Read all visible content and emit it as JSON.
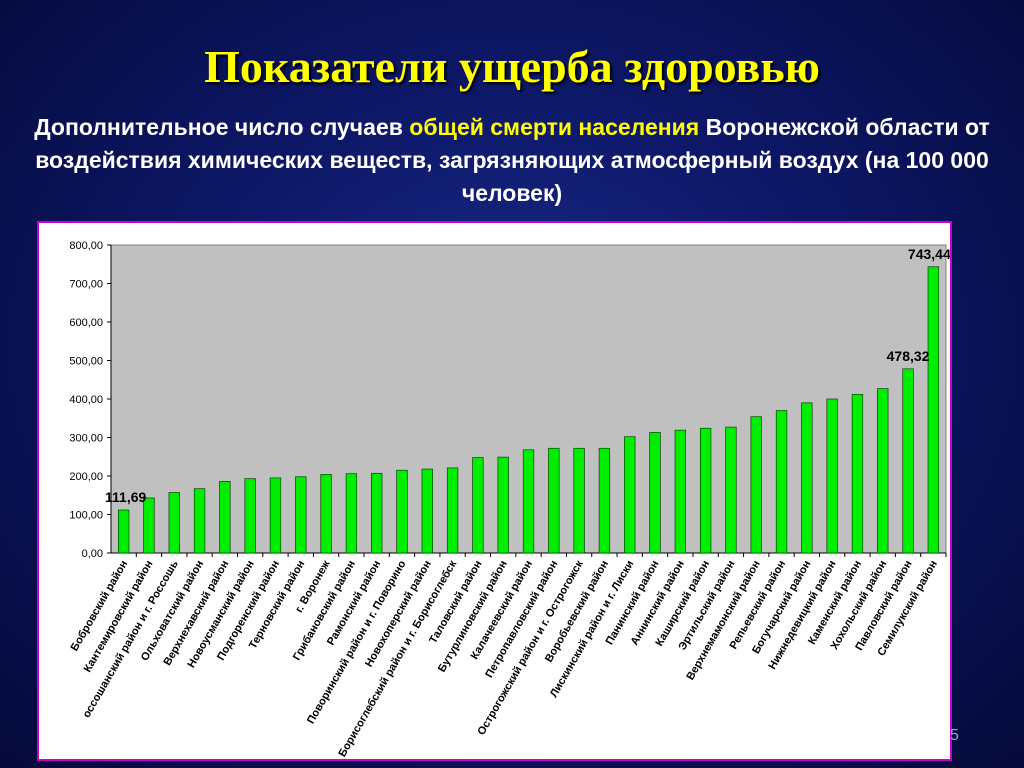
{
  "slide": {
    "title": "Показатели ущерба здоровью",
    "subtitle_part1": "Дополнительное число случаев ",
    "subtitle_highlight": "общей смерти населения",
    "subtitle_part2": " Воронежской области от воздействия химических веществ, загрязняющих атмосферный воздух (на 100 000 человек)",
    "page_number": "5"
  },
  "colors": {
    "bar": "#00ee00",
    "bar_outline": "#004400",
    "plot_bg": "#c0c0c0",
    "title": "#ffff00",
    "frame": "#c800c8"
  },
  "chart_data": {
    "type": "bar",
    "categories": [
      "Бобровский район",
      "Кантемировский район",
      "оссошанский район и г. Россошь",
      "Ольховатский район",
      "Верхнехавский район",
      "Новоусманский район",
      "Подгоренский район",
      "Терновский район",
      "г. Воронеж",
      "Грибановский район",
      "Рамонский район",
      "Поворинский район и г. Поворино",
      "Новохоперский район",
      "Борисоглебский район и г. Борисоглебск",
      "Таловский район",
      "Бутурлиновский район",
      "Калачеевский район",
      "Петропавловский район",
      "Острогожский район и г. Острогожск",
      "Воробьевский район",
      "Лискинский район и г. Лиски",
      "Панинский район",
      "Аннинский район",
      "Каширский район",
      "Эртильский район",
      "Верхнемамонский район",
      "Репьевский район",
      "Богучарский район",
      "Нижнедевицкий район",
      "Каменский район",
      "Хохольский район",
      "Павловский район",
      "Семилукский район"
    ],
    "values": [
      111.69,
      143,
      157,
      167,
      186,
      193,
      195,
      198,
      204,
      206,
      207,
      215,
      218,
      221,
      248,
      249,
      268,
      272,
      272,
      272,
      302,
      313,
      319,
      324,
      327,
      354,
      370,
      390,
      400,
      412,
      427,
      478.32,
      743.44
    ],
    "data_labels": [
      {
        "index": 0,
        "text": "111,69"
      },
      {
        "index": 31,
        "text": "478,32"
      },
      {
        "index": 32,
        "text": "743,44"
      }
    ],
    "ylim": [
      0,
      800
    ],
    "yticks": [
      0,
      100,
      200,
      300,
      400,
      500,
      600,
      700,
      800
    ],
    "ytick_labels": [
      "0,00",
      "100,00",
      "200,00",
      "300,00",
      "400,00",
      "500,00",
      "600,00",
      "700,00",
      "800,00"
    ],
    "xlabel": "",
    "ylabel": "",
    "grid": false,
    "legend": "none"
  }
}
